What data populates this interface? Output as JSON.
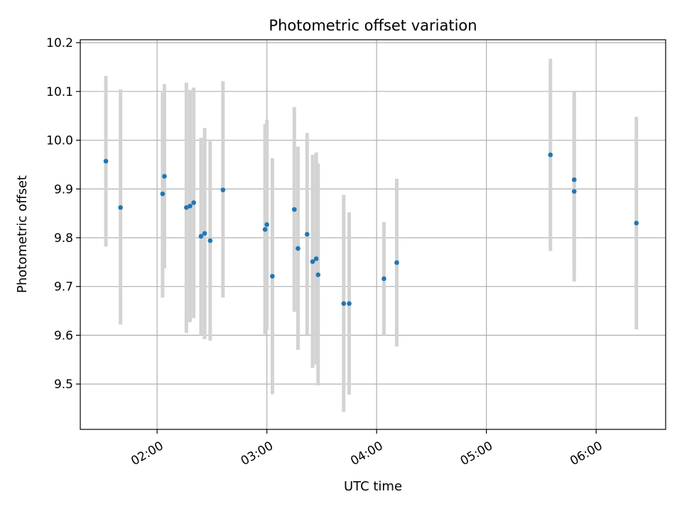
{
  "chart_data": {
    "type": "scatter",
    "title": "Photometric offset variation",
    "xlabel": "UTC time",
    "ylabel": "Photometric offset",
    "x_ticks": [
      "02:00",
      "03:00",
      "04:00",
      "05:00",
      "06:00"
    ],
    "y_ticks": [
      "9.5",
      "9.6",
      "9.7",
      "9.8",
      "9.9",
      "10.0",
      "10.1",
      "10.2"
    ],
    "xlim": [
      "01:18",
      "06:38"
    ],
    "ylim": [
      9.407,
      10.206
    ],
    "grid": true,
    "colors": {
      "point": "#1f77b4",
      "errorbar": "#d3d3d3",
      "grid": "#b0b0b0"
    },
    "points": [
      {
        "time": "01:32",
        "y": 9.957,
        "ylow": 9.782,
        "yhigh": 10.132
      },
      {
        "time": "01:40",
        "y": 9.862,
        "ylow": 9.622,
        "yhigh": 10.104
      },
      {
        "time": "02:03",
        "y": 9.89,
        "ylow": 9.677,
        "yhigh": 10.098
      },
      {
        "time": "02:04",
        "y": 9.926,
        "ylow": 9.737,
        "yhigh": 10.115
      },
      {
        "time": "02:16",
        "y": 9.862,
        "ylow": 9.605,
        "yhigh": 10.118
      },
      {
        "time": "02:18",
        "y": 9.865,
        "ylow": 9.627,
        "yhigh": 10.103
      },
      {
        "time": "02:20",
        "y": 9.872,
        "ylow": 9.635,
        "yhigh": 10.108
      },
      {
        "time": "02:24",
        "y": 9.803,
        "ylow": 9.6,
        "yhigh": 10.005
      },
      {
        "time": "02:26",
        "y": 9.809,
        "ylow": 9.592,
        "yhigh": 10.025
      },
      {
        "time": "02:29",
        "y": 9.794,
        "ylow": 9.589,
        "yhigh": 9.998
      },
      {
        "time": "02:36",
        "y": 9.898,
        "ylow": 9.677,
        "yhigh": 10.121
      },
      {
        "time": "02:59",
        "y": 9.817,
        "ylow": 9.602,
        "yhigh": 10.033
      },
      {
        "time": "03:00",
        "y": 9.827,
        "ylow": 9.611,
        "yhigh": 10.042
      },
      {
        "time": "03:03",
        "y": 9.721,
        "ylow": 9.479,
        "yhigh": 9.963
      },
      {
        "time": "03:15",
        "y": 9.858,
        "ylow": 9.648,
        "yhigh": 10.068
      },
      {
        "time": "03:17",
        "y": 9.778,
        "ylow": 9.57,
        "yhigh": 9.987
      },
      {
        "time": "03:22",
        "y": 9.807,
        "ylow": 9.6,
        "yhigh": 10.015
      },
      {
        "time": "03:25",
        "y": 9.751,
        "ylow": 9.533,
        "yhigh": 9.97
      },
      {
        "time": "03:27",
        "y": 9.757,
        "ylow": 9.54,
        "yhigh": 9.975
      },
      {
        "time": "03:28",
        "y": 9.724,
        "ylow": 9.497,
        "yhigh": 9.952
      },
      {
        "time": "03:42",
        "y": 9.665,
        "ylow": 9.443,
        "yhigh": 9.888
      },
      {
        "time": "03:45",
        "y": 9.665,
        "ylow": 9.478,
        "yhigh": 9.852
      },
      {
        "time": "04:04",
        "y": 9.716,
        "ylow": 9.6,
        "yhigh": 9.832
      },
      {
        "time": "04:11",
        "y": 9.749,
        "ylow": 9.577,
        "yhigh": 9.921
      },
      {
        "time": "05:35",
        "y": 9.97,
        "ylow": 9.773,
        "yhigh": 10.167
      },
      {
        "time": "05:48",
        "y": 9.895,
        "ylow": 9.71,
        "yhigh": 10.1
      },
      {
        "time": "05:48",
        "y": 9.919,
        "ylow": 9.74,
        "yhigh": 10.098
      },
      {
        "time": "06:22",
        "y": 9.83,
        "ylow": 9.612,
        "yhigh": 10.048
      }
    ]
  }
}
